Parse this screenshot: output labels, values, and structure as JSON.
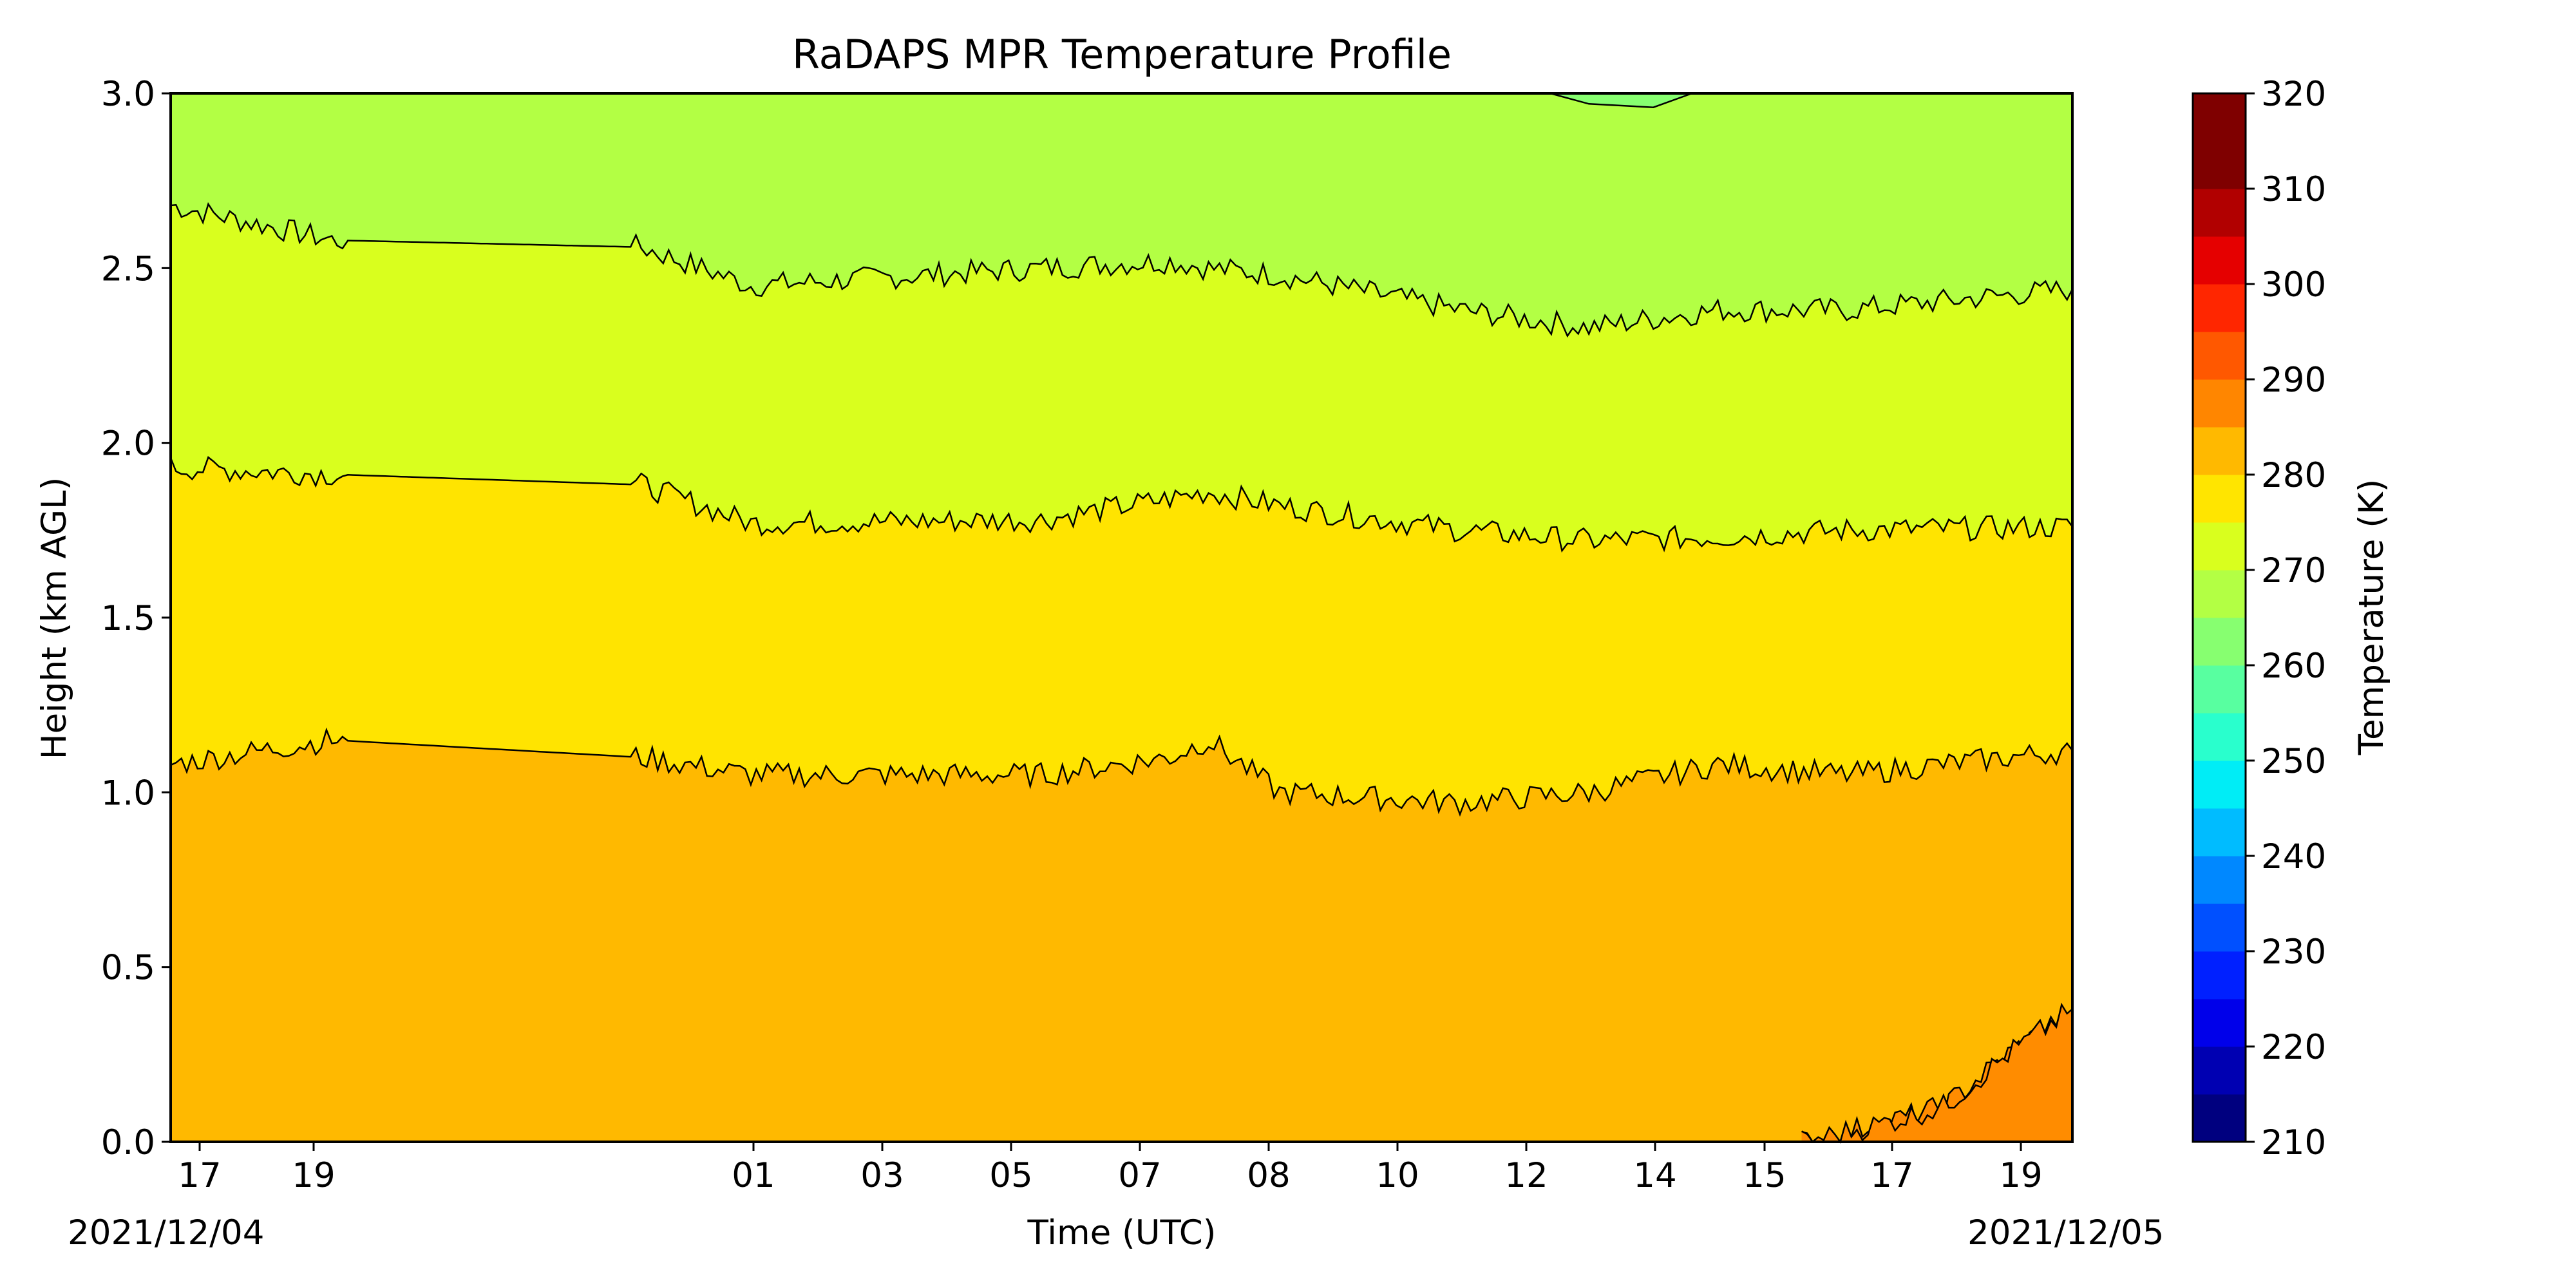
{
  "chart_data": {
    "type": "heatmap",
    "title": "RaDAPS MPR Temperature Profile",
    "xlabel": "Time (UTC)",
    "ylabel": "Height (km AGL)",
    "x_tick_labels": [
      "17",
      "19",
      "01",
      "03",
      "05",
      "07",
      "08",
      "10",
      "12",
      "14",
      "15",
      "17",
      "19"
    ],
    "x_tick_hours": [
      0.65,
      2.6,
      11.7,
      13.7,
      15.7,
      17.7,
      19.7,
      21.7,
      23.7,
      25.7,
      27.6,
      29.6,
      31.6
    ],
    "x_range_hours": [
      0,
      29.5
    ],
    "start_date_label": "2021/12/04",
    "end_date_label": "2021/12/05",
    "ylim": [
      0.0,
      3.0
    ],
    "y_ticks": [
      "0.0",
      "0.5",
      "1.0",
      "1.5",
      "2.0",
      "2.5",
      "3.0"
    ],
    "colorbar": {
      "label": "Temperature (K)",
      "range": [
        210,
        320
      ],
      "step": 5,
      "tick_labels": [
        "210",
        "220",
        "230",
        "240",
        "250",
        "260",
        "270",
        "280",
        "290",
        "300",
        "310",
        "320"
      ],
      "colors": [
        "#00007f",
        "#0000b2",
        "#0000ea",
        "#0020ff",
        "#0050ff",
        "#0088ff",
        "#00bcff",
        "#00edf6",
        "#29ffcd",
        "#58ffa0",
        "#87ff70",
        "#b3ff44",
        "#d9ff1e",
        "#ffe500",
        "#ffb900",
        "#ff8600",
        "#ff5800",
        "#ff2600",
        "#e50000",
        "#b10000",
        "#7f0000",
        "#7f0000"
      ]
    },
    "contour_levels": [
      {
        "temperature": 290,
        "fill": "#ff8c00",
        "height_km": [
          [
            25.3,
            0.0
          ],
          [
            26.5,
            0.05
          ],
          [
            27.5,
            0.1
          ],
          [
            28.5,
            0.25
          ],
          [
            29.5,
            0.38
          ]
        ]
      },
      {
        "temperature": 285,
        "fill": "#ffb900",
        "height_km": [
          [
            0.0,
            1.08
          ],
          [
            2.5,
            1.15
          ],
          [
            7.3,
            1.1
          ],
          [
            9.0,
            1.05
          ],
          [
            13.5,
            1.05
          ],
          [
            15.5,
            1.1
          ],
          [
            16.1,
            1.15
          ],
          [
            17.2,
            1.0
          ],
          [
            20.0,
            0.97
          ],
          [
            22.0,
            1.0
          ],
          [
            24.0,
            1.08
          ],
          [
            26.0,
            1.05
          ],
          [
            29.5,
            1.12
          ]
        ]
      },
      {
        "temperature": 280,
        "fill": "#ffe400",
        "height_km": [
          [
            0.0,
            1.93
          ],
          [
            2.5,
            1.91
          ],
          [
            7.3,
            1.88
          ],
          [
            9.0,
            1.77
          ],
          [
            13.5,
            1.78
          ],
          [
            15.5,
            1.84
          ],
          [
            16.1,
            1.86
          ],
          [
            17.2,
            1.82
          ],
          [
            20.0,
            1.75
          ],
          [
            22.0,
            1.72
          ],
          [
            24.0,
            1.73
          ],
          [
            26.0,
            1.75
          ],
          [
            29.5,
            1.76
          ]
        ]
      },
      {
        "temperature": 275,
        "fill": "#d9ff1e",
        "height_km": [
          [
            0.0,
            2.68
          ],
          [
            2.5,
            2.58
          ],
          [
            7.3,
            2.56
          ],
          [
            9.0,
            2.45
          ],
          [
            13.5,
            2.5
          ],
          [
            15.5,
            2.52
          ],
          [
            16.1,
            2.5
          ],
          [
            17.2,
            2.48
          ],
          [
            20.0,
            2.38
          ],
          [
            22.0,
            2.33
          ],
          [
            24.0,
            2.38
          ],
          [
            26.0,
            2.38
          ],
          [
            29.5,
            2.44
          ]
        ]
      },
      {
        "temperature": 270,
        "fill": "#b3ff44",
        "height_km": [
          [
            21.4,
            3.0
          ],
          [
            22.0,
            2.97
          ],
          [
            23.0,
            2.96
          ],
          [
            23.6,
            3.0
          ]
        ]
      }
    ]
  }
}
